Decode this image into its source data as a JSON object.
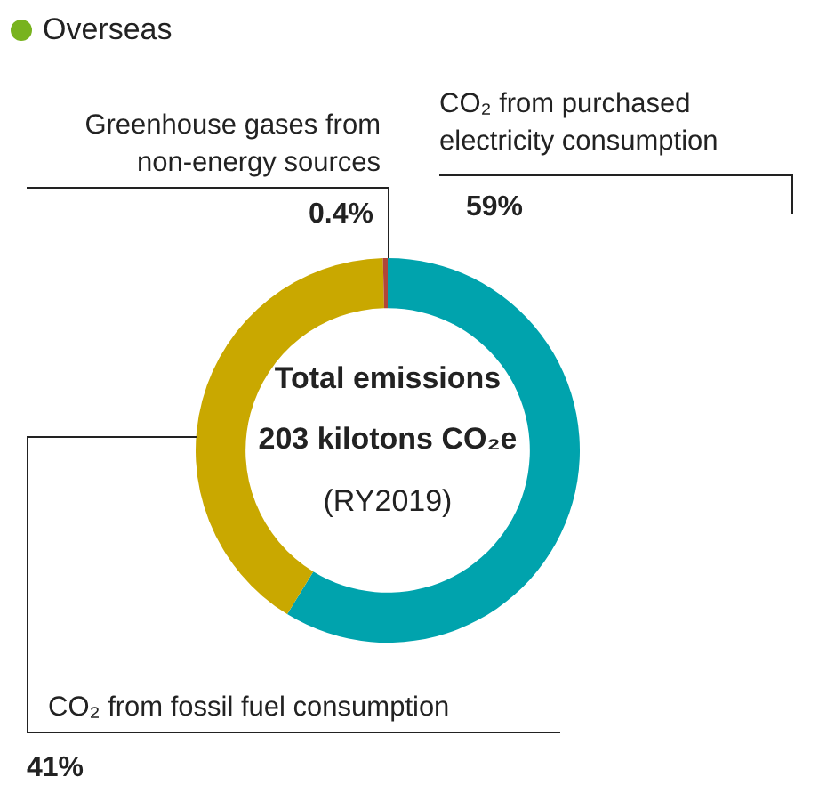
{
  "chart_data": {
    "type": "donut",
    "title": "Overseas",
    "categories": [
      "CO₂ from purchased electricity consumption",
      "CO₂ from fossil fuel consumption",
      "Greenhouse gases from non-energy sources"
    ],
    "values": [
      59,
      41,
      0.4
    ],
    "colors": [
      "#00a3ad",
      "#c9a800",
      "#b0463a"
    ],
    "value_labels": [
      "59%",
      "41%",
      "0.4%"
    ],
    "annotations": [
      "Total emissions",
      "203 kilotons CO₂e",
      "(RY2019)"
    ]
  }
}
